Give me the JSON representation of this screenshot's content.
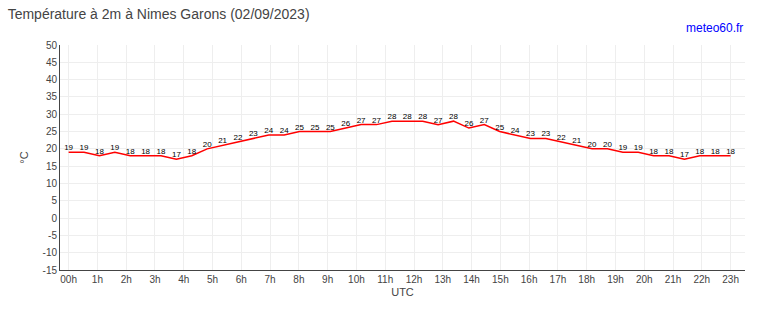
{
  "chart_data": {
    "type": "line",
    "title": "Température à 2m à Nimes Garons (02/09/2023)",
    "xlabel": "UTC",
    "ylabel": "°C",
    "annotations": [
      {
        "text": "meteo60.fr",
        "color": "#0000ff"
      }
    ],
    "x": [
      0,
      0.534884,
      1.069767,
      1.604651,
      2.139535,
      2.674419,
      3.209302,
      3.744186,
      4.27907,
      4.813953,
      5.348837,
      5.883721,
      6.418605,
      6.953488,
      7.488372,
      8.023256,
      8.55814,
      9.093023,
      9.627907,
      10.162791,
      10.697674,
      11.232558,
      11.767442,
      12.302326,
      12.837209,
      13.372093,
      13.906977,
      14.44186,
      14.976744,
      15.511628,
      16.046512,
      16.581395,
      17.116279,
      17.651163,
      18.186047,
      18.72093,
      19.255814,
      19.790698,
      20.325581,
      20.860465,
      21.395349,
      21.930233,
      22.465116,
      23
    ],
    "values": [
      19,
      19,
      18,
      19,
      18,
      18,
      18,
      17,
      18,
      20,
      21,
      22,
      23,
      24,
      24,
      25,
      25,
      25,
      26,
      27,
      27,
      28,
      28,
      28,
      27,
      28,
      26,
      27,
      25,
      24,
      23,
      23,
      22,
      21,
      20,
      20,
      19,
      19,
      18,
      18,
      17,
      18,
      18,
      18
    ],
    "color": "#ff0000",
    "data_labels": true,
    "xlim": [
      -0.3,
      23.5
    ],
    "xticks": [
      {
        "value": 0,
        "label": "00h"
      },
      {
        "value": 1,
        "label": "1h"
      },
      {
        "value": 2,
        "label": "2h"
      },
      {
        "value": 3,
        "label": "3h"
      },
      {
        "value": 4,
        "label": "4h"
      },
      {
        "value": 5,
        "label": "5h"
      },
      {
        "value": 6,
        "label": "6h"
      },
      {
        "value": 7,
        "label": "7h"
      },
      {
        "value": 8,
        "label": "8h"
      },
      {
        "value": 9,
        "label": "9h"
      },
      {
        "value": 10,
        "label": "10h"
      },
      {
        "value": 11,
        "label": "11h"
      },
      {
        "value": 12,
        "label": "12h"
      },
      {
        "value": 13,
        "label": "13h"
      },
      {
        "value": 14,
        "label": "14h"
      },
      {
        "value": 15,
        "label": "15h"
      },
      {
        "value": 16,
        "label": "16h"
      },
      {
        "value": 17,
        "label": "17h"
      },
      {
        "value": 18,
        "label": "18h"
      },
      {
        "value": 19,
        "label": "19h"
      },
      {
        "value": 20,
        "label": "20h"
      },
      {
        "value": 21,
        "label": "21h"
      },
      {
        "value": 22,
        "label": "22h"
      },
      {
        "value": 23,
        "label": "23h"
      }
    ],
    "ylim": [
      -15,
      50
    ],
    "yticks": [
      -15,
      -10,
      -5,
      0,
      5,
      10,
      15,
      20,
      25,
      30,
      35,
      40,
      45,
      50
    ],
    "grid": true
  }
}
